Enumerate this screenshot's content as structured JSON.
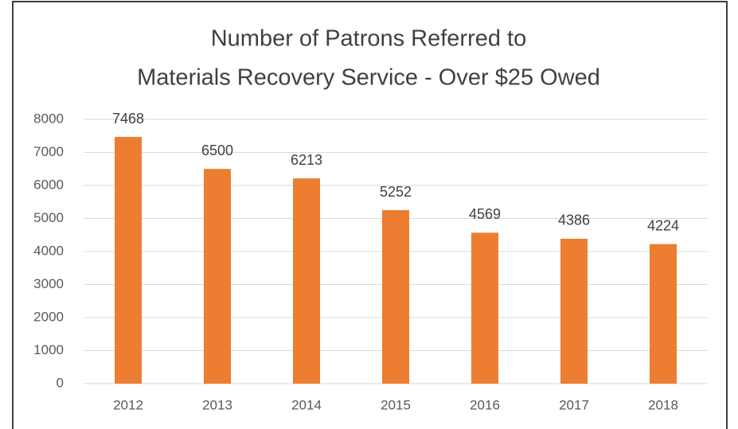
{
  "chart_data": {
    "type": "bar",
    "title": [
      "Number of Patrons Referred to",
      "Materials Recovery Service - Over $25 Owed"
    ],
    "categories": [
      "2012",
      "2013",
      "2014",
      "2015",
      "2016",
      "2017",
      "2018"
    ],
    "values": [
      7468,
      6500,
      6213,
      5252,
      4569,
      4386,
      4224
    ],
    "color": "#ed7d31",
    "ylim": [
      0,
      8000
    ],
    "yticks": [
      0,
      1000,
      2000,
      3000,
      4000,
      5000,
      6000,
      7000,
      8000
    ],
    "grid": true
  }
}
